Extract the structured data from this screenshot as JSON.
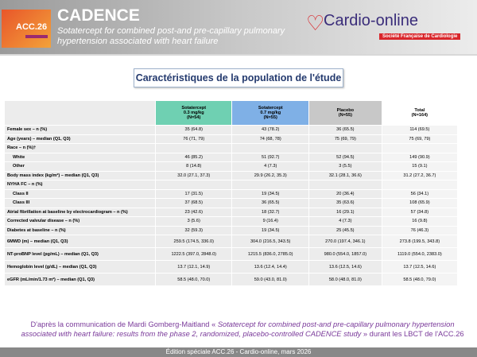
{
  "header": {
    "badge": "ACC.26",
    "title": "CADENCE",
    "subtitle": "Sotatercept for combined post-and pre-capillary pulmonary hypertension associated with heart failure",
    "logo_name": "Cardio-online",
    "logo_tag": "Société Française de Cardiologie"
  },
  "section_title": "Caractéristiques de la population de l'étude",
  "table": {
    "columns": [
      {
        "l1": "Sotatercept",
        "l2": "0.3 mg/kg",
        "l3": "(N=54)"
      },
      {
        "l1": "Sotatercept",
        "l2": "0.7 mg/kg",
        "l3": "(N=55)"
      },
      {
        "l1": "Placebo",
        "l2": "(N=55)",
        "l3": ""
      },
      {
        "l1": "Total",
        "l2": "(N=164)",
        "l3": ""
      }
    ],
    "rows": [
      {
        "label": "Female sex – n (%)",
        "v": [
          "35 (64.8)",
          "43 (78.2)",
          "36 (65.5)",
          "114 (69.5)"
        ]
      },
      {
        "label": "Age (years) – median (Q1, Q3)",
        "v": [
          "76 (71, 79)",
          "74 (68, 78)",
          "75 (69, 79)",
          "75 (69, 79)"
        ]
      },
      {
        "label": "Race – n (%)†",
        "v": [
          "",
          "",
          "",
          ""
        ]
      },
      {
        "label": "White",
        "v": [
          "46 (85.2)",
          "51 (92.7)",
          "52 (94.5)",
          "149 (90.9)"
        ]
      },
      {
        "label": "Other",
        "v": [
          "8 (14.8)",
          "4 (7.3)",
          "3 (5.5)",
          "15 (9.1)"
        ]
      },
      {
        "label": "Body mass index (kg/m²) – median (Q1, Q3)",
        "v": [
          "32.0 (27.1, 37.3)",
          "29.9 (26.2, 35.3)",
          "32.1 (28.1, 36.6)",
          "31.2 (27.2, 36.7)"
        ]
      },
      {
        "label": "NYHA FC – n (%)",
        "v": [
          "",
          "",
          "",
          ""
        ]
      },
      {
        "label": "Class II",
        "v": [
          "17 (31.5)",
          "19 (34.5)",
          "20 (36.4)",
          "56 (34.1)"
        ]
      },
      {
        "label": "Class III",
        "v": [
          "37 (68.5)",
          "36 (65.5)",
          "35 (63.6)",
          "108 (65.9)"
        ]
      },
      {
        "label": "Atrial fibrillation at baseline by electrocardiogram – n (%)",
        "v": [
          "23 (42.6)",
          "18 (32.7)",
          "16 (29.1)",
          "57 (34.8)"
        ]
      },
      {
        "label": "Corrected valvular disease – n (%)",
        "v": [
          "3 (5.6)",
          "9 (16.4)",
          "4 (7.3)",
          "16 (9.8)"
        ]
      },
      {
        "label": "Diabetes at baseline – n (%)",
        "v": [
          "32 (59.3)",
          "19 (34.5)",
          "25 (45.5)",
          "76 (46.3)"
        ]
      },
      {
        "label": "6MWD (m) – median (Q1, Q3)",
        "v": [
          "259.5 (174.5, 336.0)",
          "304.0 (216.5, 343.5)",
          "270.0 (197.4, 346.1)",
          "273.8 (199.5, 343.8)"
        ]
      },
      {
        "label": "NT-proBNP level (pg/mL) – median (Q1, Q3)",
        "v": [
          "1222.5 (397.0, 2848.0)",
          "1215.5 (836.0, 2785.0)",
          "980.0 (554.0, 1857.0)",
          "1119.0 (554.0, 2383.0)"
        ]
      },
      {
        "label": "Hemoglobin level (g/dL) – median (Q1, Q3)",
        "v": [
          "13.7 (12.1, 14.9)",
          "13.6 (12.4, 14.4)",
          "13.6 (12.5, 14.6)",
          "13.7 (12.5, 14.6)"
        ]
      },
      {
        "label": "eGFR (mL/min/1.73 m²) – median (Q1, Q3)",
        "v": [
          "58.5 (48.0, 70.0)",
          "59.0 (43.0, 81.0)",
          "58.0 (48.0, 81.0)",
          "58.5 (48.0, 79.0)"
        ]
      }
    ]
  },
  "citation": {
    "pre": "D'après la communication de Mardi Gomberg-Maitland « ",
    "italic": "Sotatercept for combined post-and pre-capillary pulmonary hypertension associated with heart failure: results from the phase 2, randomized, placebo-controlled CADENCE study",
    "post": " » durant les LBCT de l'ACC.26"
  },
  "footer": "Édition spéciale ACC.26 - Cardio-online, mars 2026"
}
